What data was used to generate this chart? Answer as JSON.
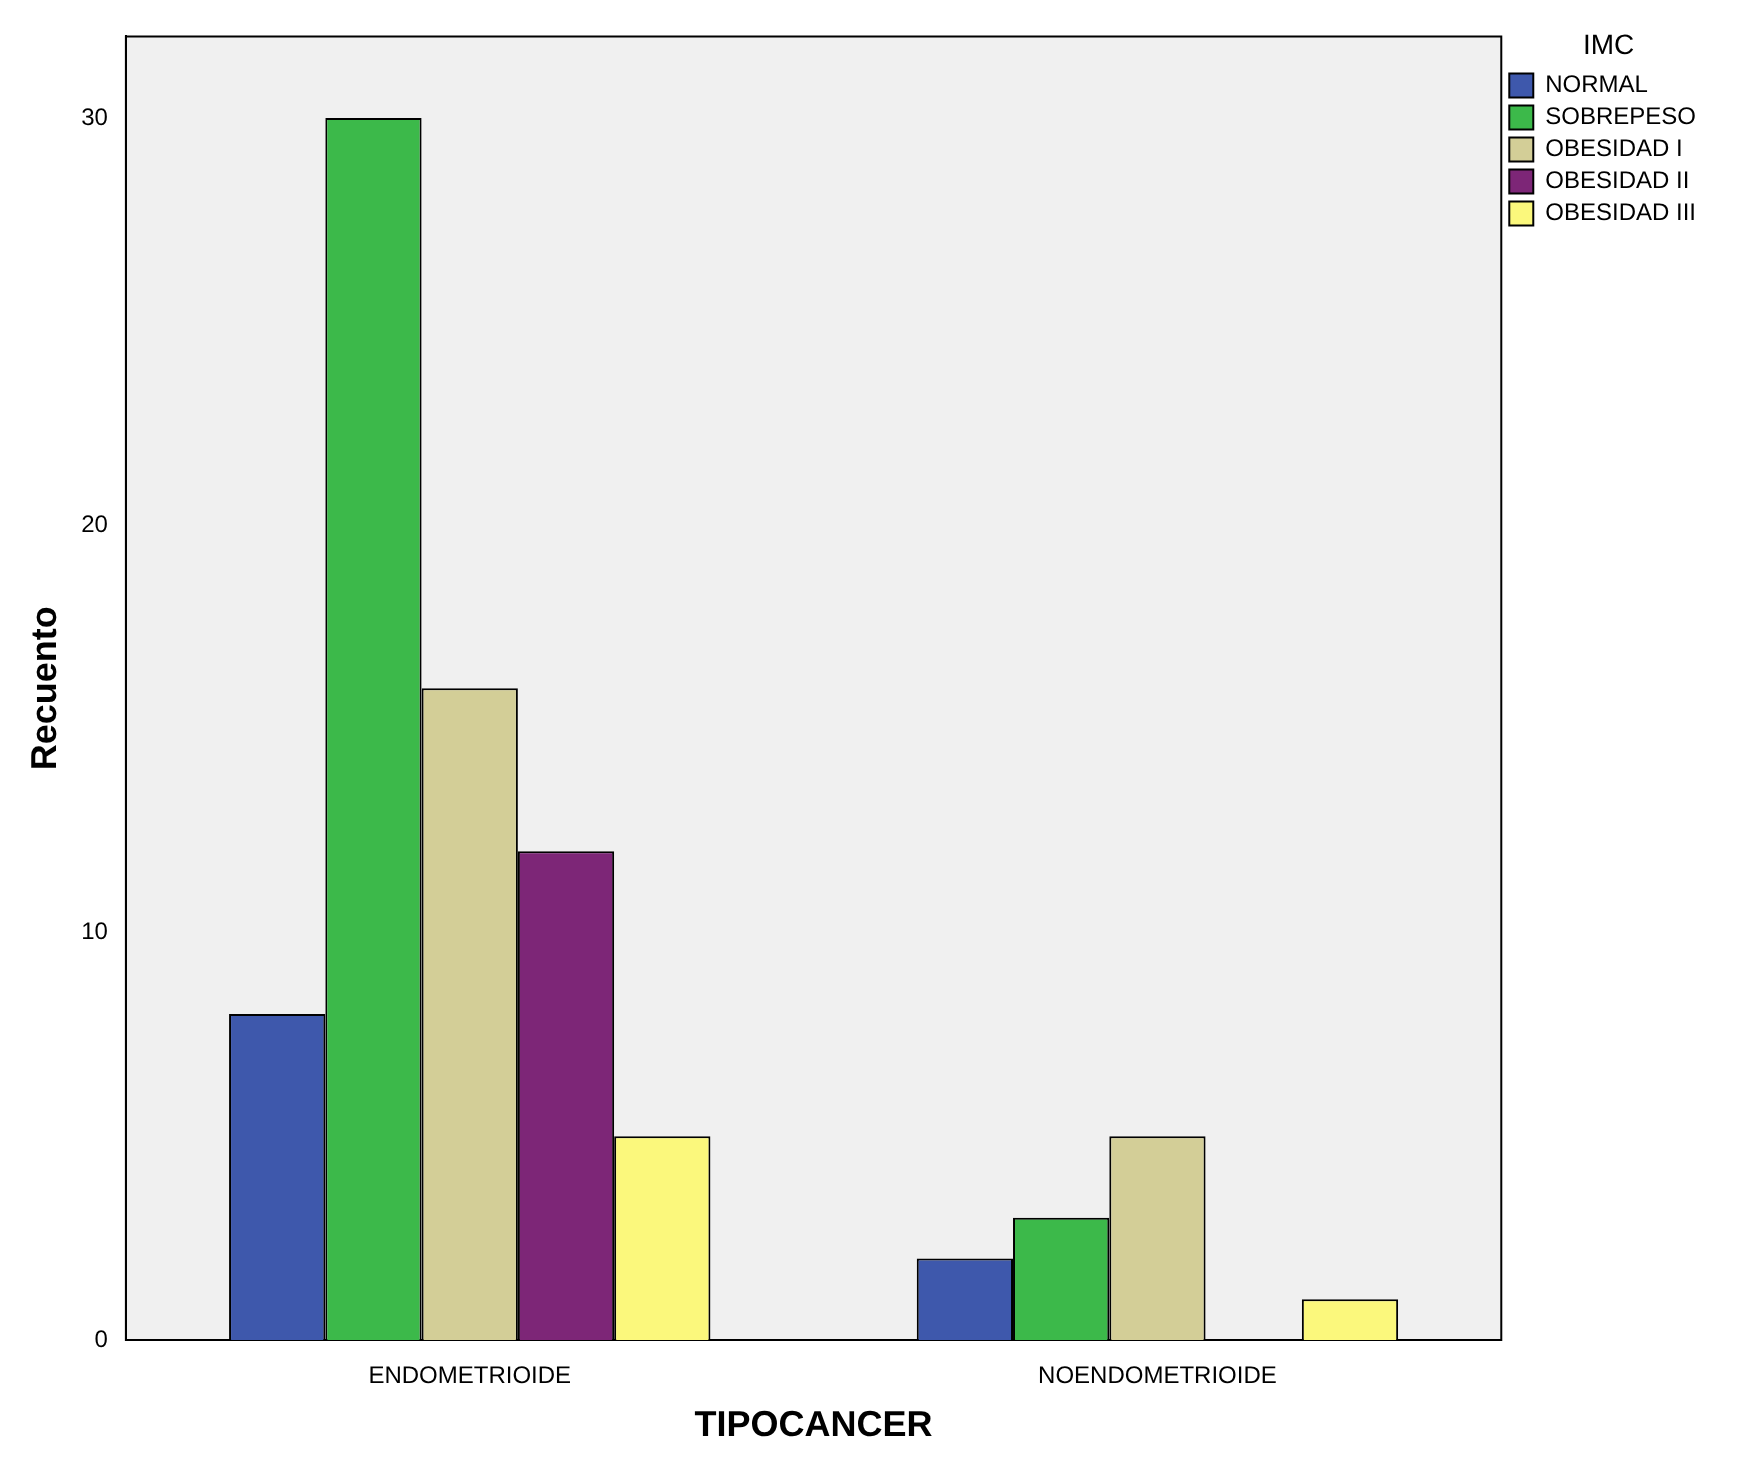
{
  "chart_data": {
    "type": "bar",
    "xlabel": "TIPOCANCER",
    "ylabel": "Recuento",
    "legend_title": "IMC",
    "categories": [
      "ENDOMETRIOIDE",
      "NOENDOMETRIOIDE"
    ],
    "series": [
      {
        "name": "NORMAL",
        "color": "#3e58ac",
        "values": [
          8,
          2
        ]
      },
      {
        "name": "SOBREPESO",
        "color": "#3cb94a",
        "values": [
          30,
          3
        ]
      },
      {
        "name": "OBESIDAD I",
        "color": "#d3ce97",
        "values": [
          16,
          5
        ]
      },
      {
        "name": "OBESIDAD II",
        "color": "#7d2677",
        "values": [
          12,
          null
        ]
      },
      {
        "name": "OBESIDAD III",
        "color": "#fbf87c",
        "values": [
          5,
          1
        ]
      }
    ],
    "ylim": [
      0,
      32
    ],
    "yticks": [
      0,
      10,
      20,
      30
    ],
    "grid": false,
    "legend": "top right"
  }
}
